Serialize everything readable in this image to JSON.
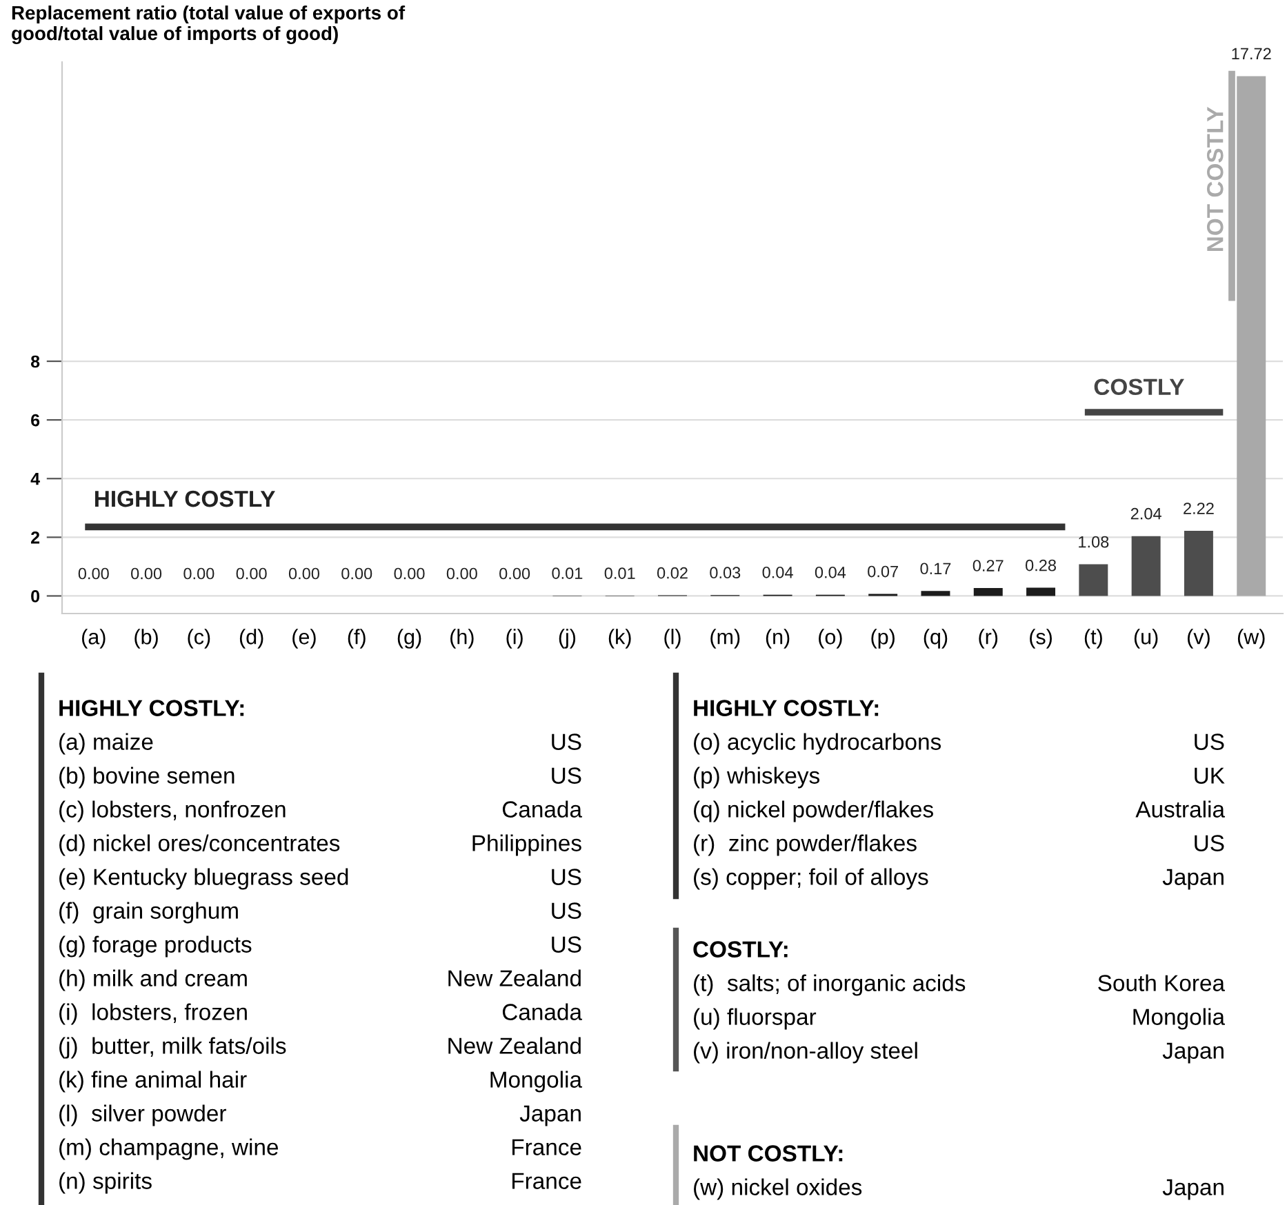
{
  "chart_data": {
    "type": "bar",
    "ylabel": "Replacement ratio (total value of exports of\ngood/total value of imports of good)",
    "categories": [
      "(a)",
      "(b)",
      "(c)",
      "(d)",
      "(e)",
      "(f)",
      "(g)",
      "(h)",
      "(i)",
      "(j)",
      "(k)",
      "(l)",
      "(m)",
      "(n)",
      "(o)",
      "(p)",
      "(q)",
      "(r)",
      "(s)",
      "(t)",
      "(u)",
      "(v)",
      "(w)"
    ],
    "values": [
      0,
      0,
      0,
      0,
      0,
      0,
      0,
      0,
      0,
      0.01,
      0.01,
      0.02,
      0.03,
      0.04,
      0.04,
      0.07,
      0.17,
      0.27,
      0.28,
      1.08,
      2.04,
      2.22,
      17.72
    ],
    "colors": [
      "#1c1c1c",
      "#1c1c1c",
      "#1c1c1c",
      "#1c1c1c",
      "#1c1c1c",
      "#1c1c1c",
      "#1c1c1c",
      "#1c1c1c",
      "#1c1c1c",
      "#1c1c1c",
      "#1c1c1c",
      "#1c1c1c",
      "#1c1c1c",
      "#1c1c1c",
      "#1c1c1c",
      "#1c1c1c",
      "#1c1c1c",
      "#1c1c1c",
      "#1c1c1c",
      "#4d4d4d",
      "#4d4d4d",
      "#4d4d4d",
      "#a9a9a9"
    ],
    "value_labels": [
      "0.00",
      "0.00",
      "0.00",
      "0.00",
      "0.00",
      "0.00",
      "0.00",
      "0.00",
      "0.00",
      "0.01",
      "0.01",
      "0.02",
      "0.03",
      "0.04",
      "0.04",
      "0.07",
      "0.17",
      "0.27",
      "0.28",
      "1.08",
      "2.04",
      "2.22",
      "17.72"
    ],
    "ylim": [
      -0.6,
      18.2
    ],
    "yticks": [
      0,
      2,
      4,
      6,
      8
    ],
    "grid": "y",
    "annotations": [
      "HIGHLY COSTLY",
      "COSTLY",
      "NOT COSTLY",
      "HIGHLY COSTLY:",
      "(a) maize",
      "US",
      "(b) bovine semen",
      "US",
      "(c) lobsters, nonfrozen",
      "Canada",
      "(d) nickel ores/concentrates",
      "Philippines",
      "(e) Kentucky bluegrass seed",
      "US",
      "(f)  grain sorghum",
      "US",
      "(g) forage products",
      "US",
      "(h) milk and cream",
      "New Zealand",
      "(i)  lobsters, frozen",
      "Canada",
      "(j)  butter, milk fats/oils",
      "New Zealand",
      "(k) fine animal hair",
      "Mongolia",
      "(l)  silver powder",
      "Japan",
      "(m) champagne, wine",
      "France",
      "(n) spirits",
      "France",
      "HIGHLY COSTLY:",
      "(o) acyclic hydrocarbons",
      "US",
      "(p) whiskeys",
      "UK",
      "(q) nickel powder/flakes",
      "Australia",
      "(r)  zinc powder/flakes",
      "US",
      "(s) copper; foil of alloys",
      "Japan",
      "COSTLY:",
      "(t)  salts; of inorganic acids",
      "South Korea",
      "(u) fluorspar",
      "Mongolia",
      "(v) iron/non-alloy steel",
      "Japan",
      "NOT COSTLY:",
      "(w) nickel oxides",
      "Japan"
    ]
  }
}
